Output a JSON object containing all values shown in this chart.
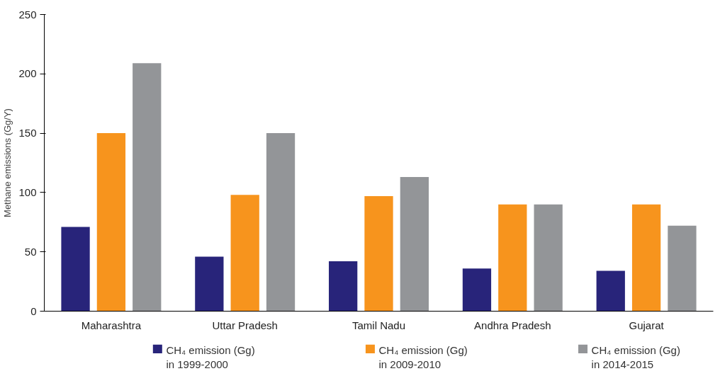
{
  "chart_data": {
    "type": "bar",
    "ylabel": "Methane emissions (Gg/Y)",
    "categories": [
      "Maharashtra",
      "Uttar Pradesh",
      "Tamil Nadu",
      "Andhra Pradesh",
      "Gujarat"
    ],
    "series": [
      {
        "name": "CH₄ emission (Gg)\nin 1999-2000",
        "color": "#28247a",
        "values": [
          71,
          46,
          42,
          36,
          34
        ]
      },
      {
        "name": "CH₄ emission (Gg)\nin 2009-2010",
        "color": "#f7941d",
        "values": [
          150,
          98,
          97,
          90,
          90
        ]
      },
      {
        "name": "CH₄ emission (Gg)\nin 2014-2015",
        "color": "#939598",
        "values": [
          209,
          150,
          113,
          90,
          72
        ]
      }
    ],
    "ylim": [
      0,
      250
    ],
    "yticks": [
      0,
      50,
      100,
      150,
      200,
      250
    ],
    "grid": false,
    "legend": "bottom"
  }
}
